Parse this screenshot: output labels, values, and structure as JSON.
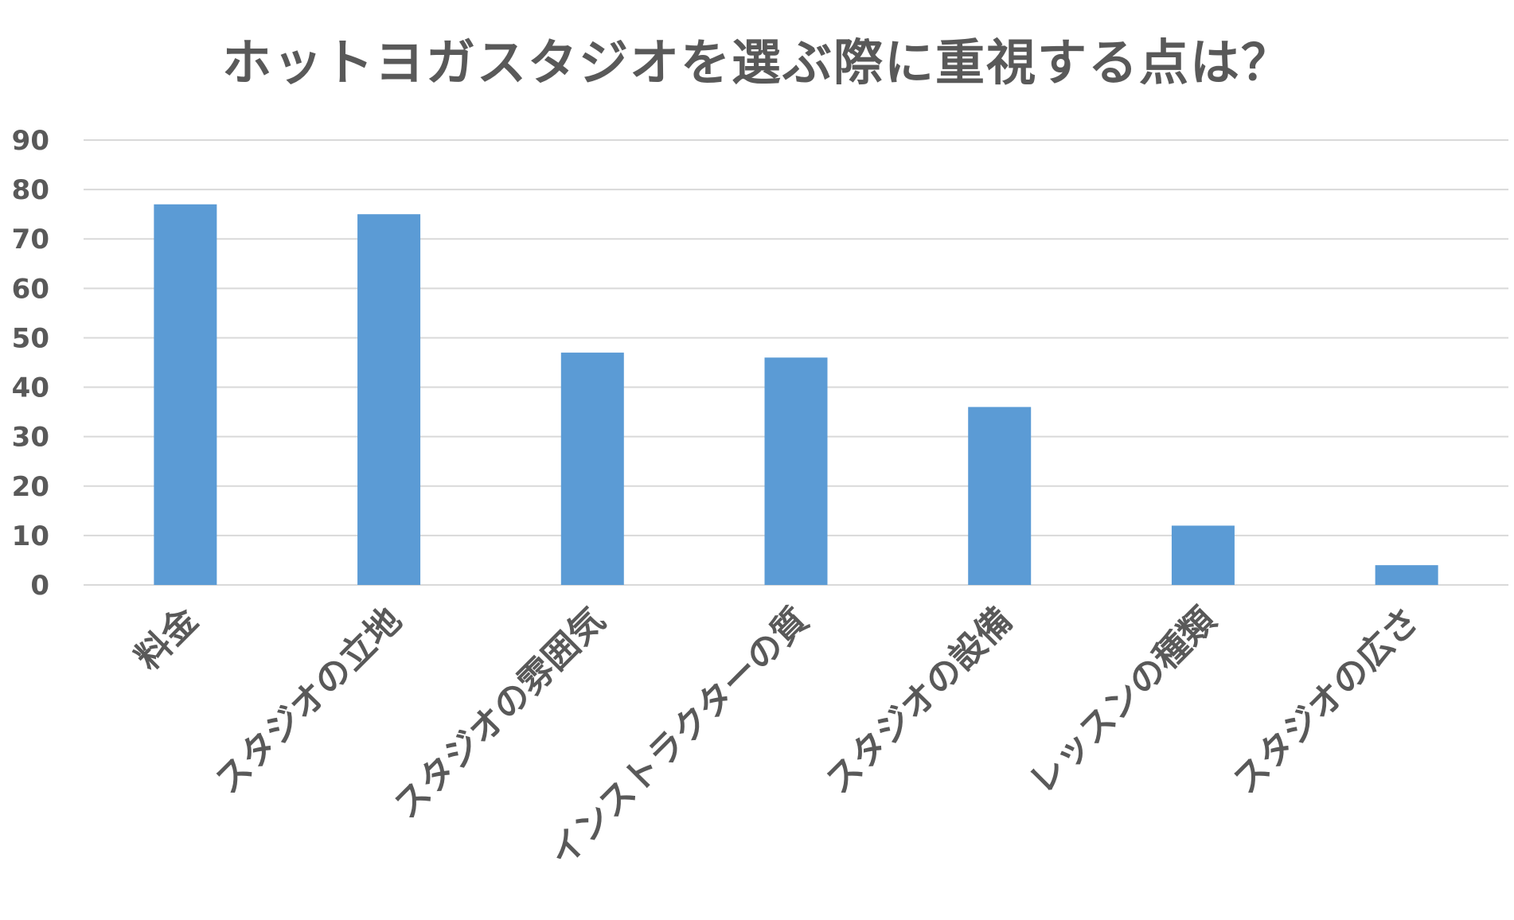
{
  "chart_data": {
    "type": "bar",
    "title": "ホットヨガスタジオを選ぶ際に重視する点は？",
    "xlabel": "",
    "ylabel": "",
    "categories": [
      "料金",
      "スタジオの立地",
      "スタジオの雰囲気",
      "インストラクターの質",
      "スタジオの設備",
      "レッスンの種類",
      "スタジオの広さ"
    ],
    "values": [
      77,
      75,
      47,
      46,
      36,
      12,
      4
    ],
    "ylim": [
      0,
      90
    ],
    "yticks": [
      0,
      10,
      20,
      30,
      40,
      50,
      60,
      70,
      80,
      90
    ],
    "grid": true,
    "legend": "none",
    "bar_color": "#5b9bd5",
    "grid_color": "#d9d9d9",
    "text_color": "#595959"
  }
}
